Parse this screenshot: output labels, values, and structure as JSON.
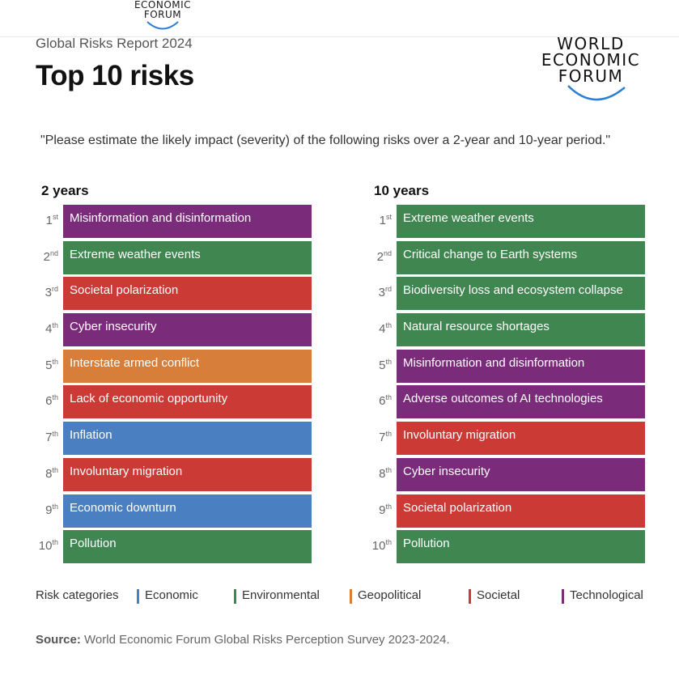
{
  "header": {
    "top_logo_line1": "ECONOMIC",
    "top_logo_line2": "FORUM",
    "subtitle": "Global Risks Report 2024",
    "title": "Top 10 risks",
    "logo_line1": "WORLD",
    "logo_line2": "ECONOMIC",
    "logo_line3": "FORUM"
  },
  "question": "\"Please estimate the likely impact (severity) of the following risks over a 2-year and 10-year period.\"",
  "colors": {
    "Economic": "#4a7fc1",
    "Environmental": "#3f8650",
    "Geopolitical": "#d77f3a",
    "Societal": "#cc3a36",
    "Technological": "#7a2b7a",
    "logo_arc": "#2a7fd6"
  },
  "chart_data": {
    "type": "table",
    "columns": [
      {
        "heading": "2 years",
        "items": [
          {
            "rank": "1",
            "suffix": "st",
            "label": "Misinformation and disinformation",
            "category": "Technological"
          },
          {
            "rank": "2",
            "suffix": "nd",
            "label": "Extreme weather events",
            "category": "Environmental"
          },
          {
            "rank": "3",
            "suffix": "rd",
            "label": "Societal polarization",
            "category": "Societal"
          },
          {
            "rank": "4",
            "suffix": "th",
            "label": "Cyber insecurity",
            "category": "Technological"
          },
          {
            "rank": "5",
            "suffix": "th",
            "label": "Interstate armed conflict",
            "category": "Geopolitical"
          },
          {
            "rank": "6",
            "suffix": "th",
            "label": "Lack of economic opportunity",
            "category": "Societal"
          },
          {
            "rank": "7",
            "suffix": "th",
            "label": "Inflation",
            "category": "Economic"
          },
          {
            "rank": "8",
            "suffix": "th",
            "label": "Involuntary migration",
            "category": "Societal"
          },
          {
            "rank": "9",
            "suffix": "th",
            "label": "Economic downturn",
            "category": "Economic"
          },
          {
            "rank": "10",
            "suffix": "th",
            "label": "Pollution",
            "category": "Environmental"
          }
        ]
      },
      {
        "heading": "10 years",
        "items": [
          {
            "rank": "1",
            "suffix": "st",
            "label": "Extreme weather events",
            "category": "Environmental"
          },
          {
            "rank": "2",
            "suffix": "nd",
            "label": "Critical change to Earth systems",
            "category": "Environmental"
          },
          {
            "rank": "3",
            "suffix": "rd",
            "label": "Biodiversity loss and ecosystem collapse",
            "category": "Environmental"
          },
          {
            "rank": "4",
            "suffix": "th",
            "label": "Natural resource shortages",
            "category": "Environmental"
          },
          {
            "rank": "5",
            "suffix": "th",
            "label": "Misinformation and disinformation",
            "category": "Technological"
          },
          {
            "rank": "6",
            "suffix": "th",
            "label": "Adverse outcomes of AI technologies",
            "category": "Technological"
          },
          {
            "rank": "7",
            "suffix": "th",
            "label": "Involuntary migration",
            "category": "Societal"
          },
          {
            "rank": "8",
            "suffix": "th",
            "label": "Cyber insecurity",
            "category": "Technological"
          },
          {
            "rank": "9",
            "suffix": "th",
            "label": "Societal polarization",
            "category": "Societal"
          },
          {
            "rank": "10",
            "suffix": "th",
            "label": "Pollution",
            "category": "Environmental"
          }
        ]
      }
    ]
  },
  "legend": {
    "title": "Risk categories",
    "items": [
      {
        "label": "Economic"
      },
      {
        "label": "Environmental"
      },
      {
        "label": "Geopolitical"
      },
      {
        "label": "Societal"
      },
      {
        "label": "Technological"
      }
    ]
  },
  "source": {
    "label": "Source:",
    "text": " World Economic Forum Global Risks Perception Survey 2023-2024."
  }
}
